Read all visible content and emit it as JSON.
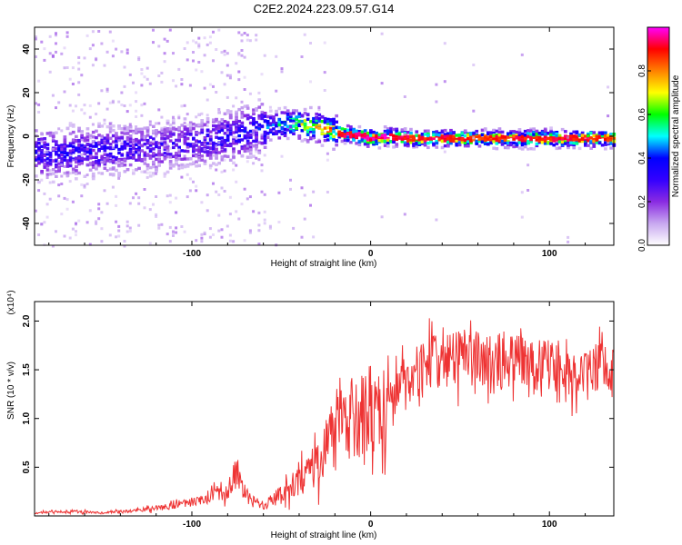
{
  "title": "C2E2.2024.223.09.57.G14",
  "chart_data": [
    {
      "type": "heatmap",
      "xlabel": "Height of straight line (km)",
      "ylabel": "Frequency (Hz)",
      "xlim": [
        -188,
        136
      ],
      "ylim": [
        -50,
        50
      ],
      "xticks": [
        -100,
        0,
        100
      ],
      "yticks": [
        -40,
        -20,
        0,
        20,
        40
      ],
      "colorbar": {
        "label": "Normalized spectral amplitude",
        "range": [
          0,
          1
        ],
        "ticks": [
          0.0,
          0.2,
          0.4,
          0.6,
          0.8
        ],
        "tick_labels": [
          "0.0",
          "0.2",
          "0.4",
          "0.6",
          "0.8"
        ],
        "colors": [
          "#ffffff",
          "#c8a8f0",
          "#8a2be2",
          "#3300ff",
          "#0000ff",
          "#00ffff",
          "#00ff00",
          "#ffff00",
          "#ff8000",
          "#ff0000",
          "#ff00ff"
        ]
      },
      "ridge": {
        "x": [
          -185,
          -160,
          -140,
          -120,
          -100,
          -80,
          -60,
          -45,
          -35,
          -25,
          -15,
          -5,
          0,
          10,
          20,
          40,
          60,
          80,
          100,
          120,
          135
        ],
        "frequency": [
          -8,
          -7,
          -6,
          -5,
          -3,
          0,
          4,
          6,
          5,
          3,
          1,
          0,
          -1,
          0,
          -1,
          -1,
          -1,
          -1,
          -1,
          -1,
          -1
        ],
        "amplitude": [
          0.35,
          0.35,
          0.32,
          0.3,
          0.3,
          0.35,
          0.4,
          0.6,
          0.7,
          0.8,
          0.85,
          0.9,
          0.9,
          0.9,
          0.85,
          0.85,
          0.8,
          0.85,
          0.85,
          0.85,
          0.8
        ]
      }
    },
    {
      "type": "line",
      "xlabel": "Height of straight line (km)",
      "ylabel": "SNR (10 * v/v)",
      "y_multiplier": "(x10⁴)",
      "xlim": [
        -188,
        136
      ],
      "ylim": [
        0,
        2.2
      ],
      "xticks": [
        -100,
        0,
        100
      ],
      "yticks": [
        0.5,
        1.0,
        1.5,
        2.0
      ],
      "ytick_labels": [
        "0.5",
        "1.0",
        "1.5",
        "2.0"
      ],
      "color": "#ee3333",
      "series": [
        {
          "x": [
            -188,
            -170,
            -150,
            -130,
            -110,
            -100,
            -90,
            -80,
            -75,
            -70,
            -60,
            -50,
            -40,
            -30,
            -25,
            -20,
            -10,
            0,
            10,
            20,
            30,
            40,
            50,
            60,
            70,
            80,
            90,
            100,
            110,
            120,
            136
          ],
          "values": [
            0.03,
            0.05,
            0.03,
            0.06,
            0.1,
            0.14,
            0.2,
            0.27,
            0.45,
            0.22,
            0.1,
            0.22,
            0.35,
            0.55,
            0.7,
            0.85,
            1.0,
            1.1,
            1.2,
            1.4,
            1.55,
            1.6,
            1.62,
            1.62,
            1.6,
            1.6,
            1.58,
            1.55,
            1.52,
            1.5,
            1.55
          ]
        }
      ]
    }
  ]
}
